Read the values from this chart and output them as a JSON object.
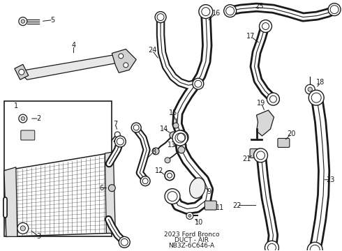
{
  "title": "2023 Ford Bronco\nDUCT - AIR\nNB3Z-6C646-A",
  "bg": "#ffffff",
  "lc": "#1a1a1a",
  "fw": 4.9,
  "fh": 3.6,
  "dpi": 100
}
